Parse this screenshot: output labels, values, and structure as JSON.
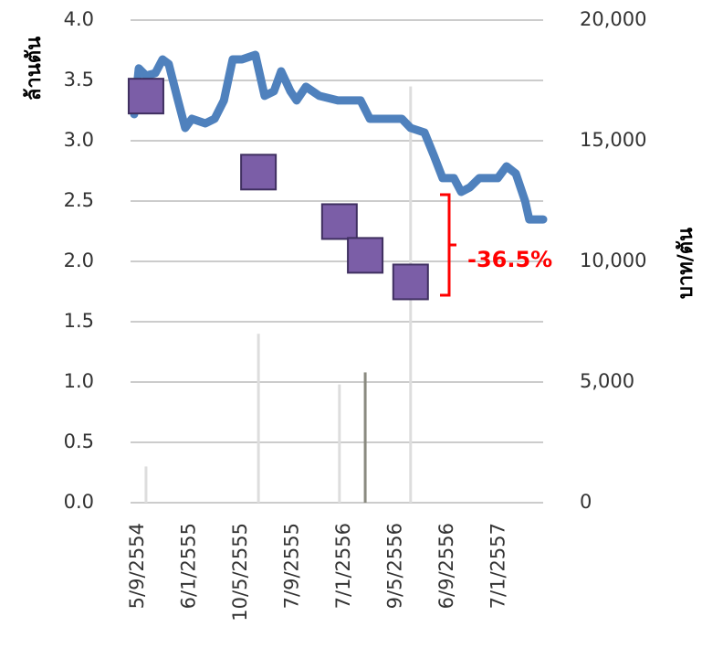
{
  "chart_data": {
    "type": "line",
    "y_label": "ล้านตัน",
    "y2_label": "บาท/ตัน",
    "annotation": "-36.5%",
    "xlim": [
      0,
      8
    ],
    "xticks": [
      {
        "value": 0,
        "label": "5/9/2554"
      },
      {
        "value": 1,
        "label": "6/1/2555"
      },
      {
        "value": 2,
        "label": "10/5/2555"
      },
      {
        "value": 3,
        "label": "7/9/2555"
      },
      {
        "value": 4,
        "label": "7/1/2556"
      },
      {
        "value": 5,
        "label": "9/5/2556"
      },
      {
        "value": 6,
        "label": "6/9/2556"
      },
      {
        "value": 7,
        "label": "7/1/2557"
      }
    ],
    "ylim": [
      0,
      4
    ],
    "yticks": [
      {
        "value": 0,
        "label": "0.0"
      },
      0.5,
      {
        "value": 1,
        "label": "1.0"
      },
      1.5,
      {
        "value": 2,
        "label": "2.0"
      },
      2.5,
      {
        "value": 3,
        "label": "3.0"
      },
      3.5,
      {
        "value": 4,
        "label": "4.0"
      }
    ],
    "y2lim": [
      0,
      20000
    ],
    "y2ticks": [
      0,
      {
        "value": 5000,
        "label": "5,000"
      },
      {
        "value": 10000,
        "label": "10,000"
      },
      {
        "value": 15000,
        "label": "15,000"
      },
      {
        "value": 20000,
        "label": "20,000"
      }
    ],
    "grid": true,
    "series": [
      {
        "type": "bar",
        "axis": "y",
        "colors": [
          "#dddddd",
          "#dddddd",
          "#dddddd",
          "#8a8a80",
          "#dddddd"
        ],
        "x": [
          0.3,
          2.48,
          4.05,
          4.55,
          5.43
        ],
        "values": [
          0.3,
          1.4,
          0.98,
          1.08,
          3.45
        ]
      },
      {
        "type": "line",
        "axis": "y2",
        "color": "#4f81bd",
        "x": [
          0.07,
          0.16,
          0.3,
          0.48,
          0.62,
          0.74,
          0.92,
          1.06,
          1.19,
          1.45,
          1.63,
          1.81,
          1.98,
          2.16,
          2.42,
          2.6,
          2.78,
          2.92,
          3.1,
          3.22,
          3.4,
          3.66,
          4.02,
          4.46,
          4.64,
          5.26,
          5.43,
          5.7,
          5.88,
          6.05,
          6.27,
          6.41,
          6.58,
          6.76,
          7.12,
          7.29,
          7.47,
          7.65,
          7.73,
          8.0
        ],
        "values": [
          16100,
          18000,
          17700,
          17800,
          18370,
          18180,
          16670,
          15530,
          15910,
          15720,
          15910,
          16670,
          18370,
          18370,
          18560,
          16860,
          17050,
          17880,
          17050,
          16670,
          17240,
          16860,
          16670,
          16670,
          15910,
          15910,
          15530,
          15340,
          14390,
          13450,
          13450,
          12880,
          13070,
          13450,
          13450,
          13940,
          13640,
          12500,
          11740,
          11740
        ]
      },
      {
        "type": "scatter",
        "axis": "y",
        "color": "#7b5ea7",
        "x": [
          0.3,
          2.48,
          4.05,
          4.55,
          5.43
        ],
        "values": [
          3.37,
          2.74,
          2.33,
          2.05,
          1.83
        ]
      }
    ]
  }
}
